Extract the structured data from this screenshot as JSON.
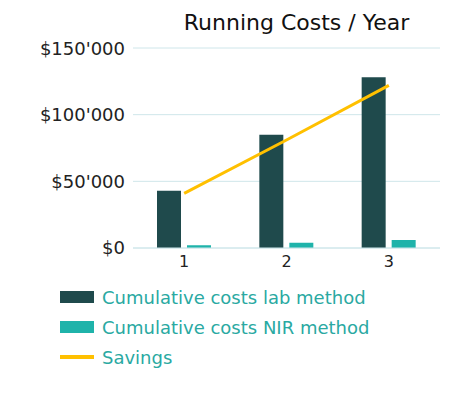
{
  "chart_data": {
    "type": "bar",
    "title": "Running Costs / Year",
    "categories": [
      "1",
      "2",
      "3"
    ],
    "series": [
      {
        "name": "Cumulative costs lab method",
        "type": "bar",
        "color": "#1f4a4c",
        "values": [
          43000,
          85000,
          128000
        ]
      },
      {
        "name": "Cumulative costs NIR method",
        "type": "bar",
        "color": "#1fb3aa",
        "values": [
          2000,
          4000,
          6000
        ]
      },
      {
        "name": "Savings",
        "type": "line",
        "color": "#ffc000",
        "values": [
          41000,
          81000,
          122000
        ]
      }
    ],
    "ylim": [
      0,
      150000
    ],
    "yticks": [
      {
        "value": 0,
        "label": "$0"
      },
      {
        "value": 50000,
        "label": "$50'000"
      },
      {
        "value": 100000,
        "label": "$100'000"
      },
      {
        "value": 150000,
        "label": "$150'000"
      }
    ],
    "grid": true,
    "legend": "bottom"
  }
}
